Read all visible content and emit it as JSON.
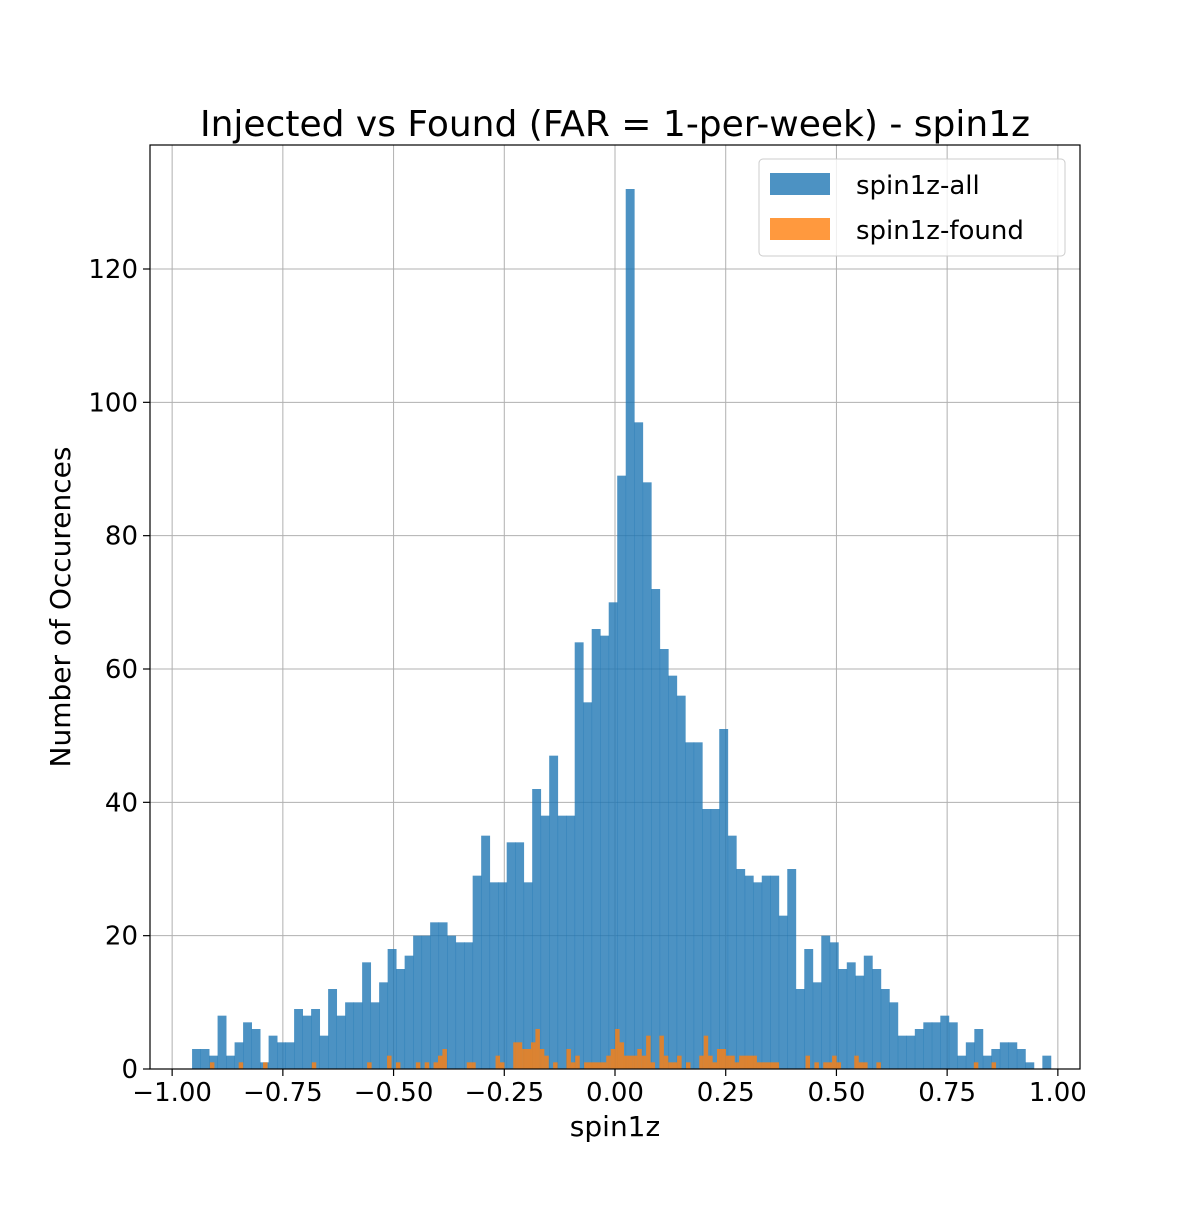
{
  "chart_data": {
    "type": "bar",
    "title": "Injected vs Found (FAR = 1-per-week) - spin1z",
    "xlabel": "spin1z",
    "ylabel": "Number of Occurences",
    "xlim": [
      -1.05,
      1.05
    ],
    "ylim": [
      0,
      138.6
    ],
    "grid": true,
    "legend_position": "top-right",
    "x_ticks": [
      {
        "value": -1.0,
        "label": "−1.00"
      },
      {
        "value": -0.75,
        "label": "−0.75"
      },
      {
        "value": -0.5,
        "label": "−0.50"
      },
      {
        "value": -0.25,
        "label": "−0.25"
      },
      {
        "value": 0.0,
        "label": "0.00"
      },
      {
        "value": 0.25,
        "label": "0.25"
      },
      {
        "value": 0.5,
        "label": "0.50"
      },
      {
        "value": 0.75,
        "label": "0.75"
      },
      {
        "value": 1.0,
        "label": "1.00"
      }
    ],
    "y_ticks": [
      {
        "value": 0,
        "label": "0"
      },
      {
        "value": 20,
        "label": "20"
      },
      {
        "value": 40,
        "label": "40"
      },
      {
        "value": 60,
        "label": "60"
      },
      {
        "value": 80,
        "label": "80"
      },
      {
        "value": 100,
        "label": "100"
      },
      {
        "value": 120,
        "label": "120"
      }
    ],
    "series": [
      {
        "name": "spin1z-all",
        "color": "#1f77b4",
        "opacity": 0.8,
        "bin_start": -0.955,
        "bin_width": 0.0192,
        "values": [
          3,
          3,
          2,
          8,
          2,
          4,
          7,
          6,
          1,
          5,
          4,
          4,
          9,
          8,
          9,
          5,
          12,
          8,
          10,
          10,
          16,
          10,
          13,
          18,
          15,
          17,
          20,
          20,
          22,
          22,
          20,
          19,
          19,
          29,
          35,
          28,
          28,
          34,
          34,
          28,
          42,
          38,
          47,
          38,
          38,
          64,
          55,
          66,
          65,
          70,
          89,
          132,
          97,
          88,
          72,
          63,
          59,
          56,
          49,
          49,
          39,
          39,
          51,
          35,
          30,
          29,
          28,
          29,
          29,
          23,
          30,
          12,
          18,
          13,
          20,
          19,
          15,
          16,
          14,
          17,
          15,
          12,
          10,
          5,
          5,
          6,
          7,
          7,
          8,
          7,
          2,
          4,
          6,
          2,
          3,
          4,
          4,
          3,
          1,
          0,
          2
        ]
      },
      {
        "name": "spin1z-found",
        "color": "#ff7f0e",
        "opacity": 0.8,
        "bin_start": -0.91,
        "bin_width": 0.0095,
        "values": [
          [
            -0.91,
            1
          ],
          [
            -0.845,
            1
          ],
          [
            -0.79,
            1
          ],
          [
            -0.68,
            1
          ],
          [
            -0.555,
            1
          ],
          [
            -0.51,
            2
          ],
          [
            -0.49,
            1
          ],
          [
            -0.445,
            1
          ],
          [
            -0.425,
            1
          ],
          [
            -0.405,
            1
          ],
          [
            -0.395,
            2
          ],
          [
            -0.385,
            3
          ],
          [
            -0.33,
            1
          ],
          [
            -0.32,
            1
          ],
          [
            -0.265,
            2
          ],
          [
            -0.255,
            1
          ],
          [
            -0.225,
            4
          ],
          [
            -0.215,
            4
          ],
          [
            -0.205,
            3
          ],
          [
            -0.195,
            3
          ],
          [
            -0.185,
            4
          ],
          [
            -0.175,
            6
          ],
          [
            -0.165,
            3
          ],
          [
            -0.155,
            2
          ],
          [
            -0.135,
            1
          ],
          [
            -0.105,
            3
          ],
          [
            -0.095,
            1
          ],
          [
            -0.085,
            2
          ],
          [
            -0.065,
            1
          ],
          [
            -0.055,
            1
          ],
          [
            -0.045,
            1
          ],
          [
            -0.035,
            1
          ],
          [
            -0.025,
            1
          ],
          [
            -0.015,
            2
          ],
          [
            -0.005,
            3
          ],
          [
            0.005,
            6
          ],
          [
            0.015,
            4
          ],
          [
            0.025,
            2
          ],
          [
            0.035,
            2
          ],
          [
            0.045,
            2
          ],
          [
            0.055,
            3
          ],
          [
            0.065,
            2
          ],
          [
            0.075,
            5
          ],
          [
            0.085,
            1
          ],
          [
            0.105,
            5
          ],
          [
            0.115,
            2
          ],
          [
            0.125,
            1
          ],
          [
            0.135,
            1
          ],
          [
            0.145,
            2
          ],
          [
            0.165,
            1
          ],
          [
            0.195,
            2
          ],
          [
            0.205,
            5
          ],
          [
            0.215,
            2
          ],
          [
            0.225,
            1
          ],
          [
            0.235,
            3
          ],
          [
            0.245,
            3
          ],
          [
            0.255,
            2
          ],
          [
            0.265,
            2
          ],
          [
            0.275,
            1
          ],
          [
            0.285,
            2
          ],
          [
            0.295,
            2
          ],
          [
            0.305,
            2
          ],
          [
            0.315,
            2
          ],
          [
            0.325,
            1
          ],
          [
            0.335,
            1
          ],
          [
            0.345,
            1
          ],
          [
            0.355,
            1
          ],
          [
            0.365,
            1
          ],
          [
            0.435,
            2
          ],
          [
            0.455,
            1
          ],
          [
            0.475,
            1
          ],
          [
            0.485,
            1
          ],
          [
            0.495,
            2
          ],
          [
            0.505,
            1
          ],
          [
            0.545,
            2
          ],
          [
            0.555,
            1
          ],
          [
            0.565,
            1
          ],
          [
            0.595,
            1
          ],
          [
            0.815,
            1
          ],
          [
            0.855,
            1
          ]
        ]
      }
    ]
  }
}
